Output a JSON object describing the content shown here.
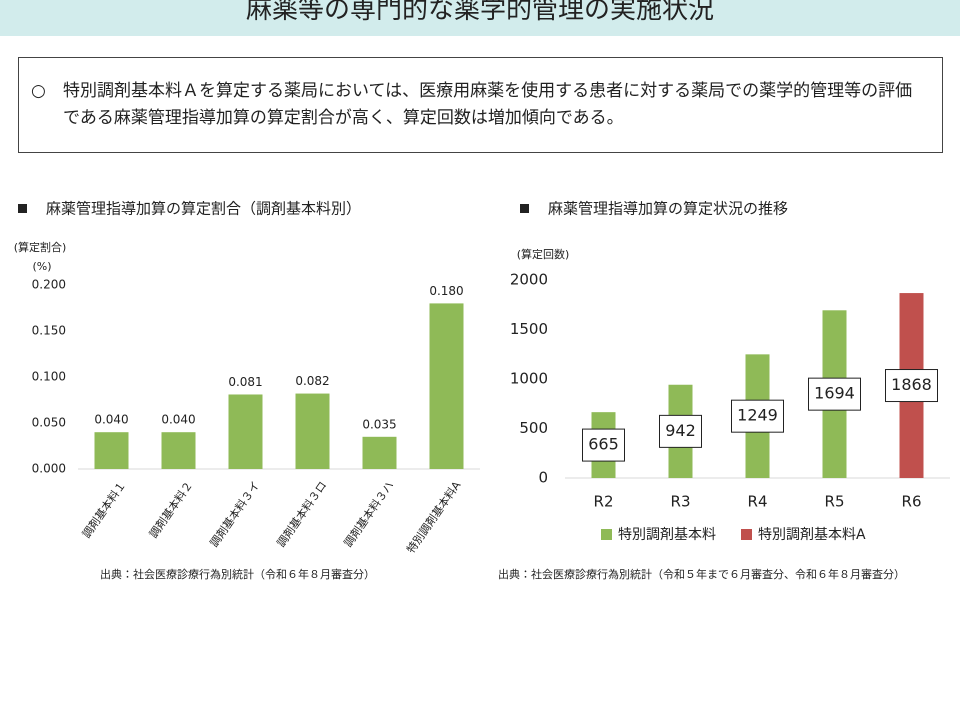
{
  "title": "麻薬等の専門的な薬学的管理の実施状況",
  "summary": {
    "bullet": "○",
    "text": "特別調剤基本料Ａを算定する薬局においては、医療用麻薬を使用する患者に対する薬局での薬学的管理等の評価である麻薬管理指導加算の算定割合が高く、算定回数は増加傾向である。"
  },
  "chart_data": [
    {
      "type": "bar",
      "title": "麻薬管理指導加算の算定割合（調剤基本料別）",
      "ylabel": "(算定割合)",
      "yunit": "(%)",
      "categories": [
        "調剤基本料１",
        "調剤基本料２",
        "調剤基本料３イ",
        "調剤基本料３ロ",
        "調剤基本料３ハ",
        "特別調剤基本料A"
      ],
      "values": [
        0.04,
        0.04,
        0.081,
        0.082,
        0.035,
        0.18
      ],
      "value_labels": [
        "0.040",
        "0.040",
        "0.081",
        "0.082",
        "0.035",
        "0.180"
      ],
      "value_label_position": "above",
      "color": "#8fba57",
      "ylim": [
        0,
        0.2
      ],
      "yticks": [
        {
          "value": 0,
          "label": "0.000"
        },
        {
          "value": 0.05,
          "label": "0.050"
        },
        {
          "value": 0.1,
          "label": "0.100"
        },
        {
          "value": 0.15,
          "label": "0.150"
        },
        {
          "value": 0.2,
          "label": "0.200"
        }
      ],
      "grid": false,
      "source": "出典：社会医療診療行為別統計（令和６年８月審査分）"
    },
    {
      "type": "bar",
      "title": "麻薬管理指導加算の算定状況の推移",
      "ylabel": "(算定回数)",
      "categories": [
        "R2",
        "R3",
        "R4",
        "R5",
        "R6"
      ],
      "series": [
        {
          "name": "特別調剤基本料",
          "color": "#8fba57",
          "values": [
            665,
            942,
            1249,
            1694,
            null
          ]
        },
        {
          "name": "特別調剤基本料A",
          "color": "#c0504d",
          "values": [
            null,
            null,
            null,
            null,
            1868
          ]
        }
      ],
      "value_label_position": "inside",
      "ylim": [
        0,
        2000
      ],
      "yticks": [
        0,
        500,
        1000,
        1500,
        2000
      ],
      "grid": false,
      "legend": "bottom",
      "source": "出典：社会医療診療行為別統計（令和５年まで６月審査分、令和６年８月審査分）"
    }
  ]
}
